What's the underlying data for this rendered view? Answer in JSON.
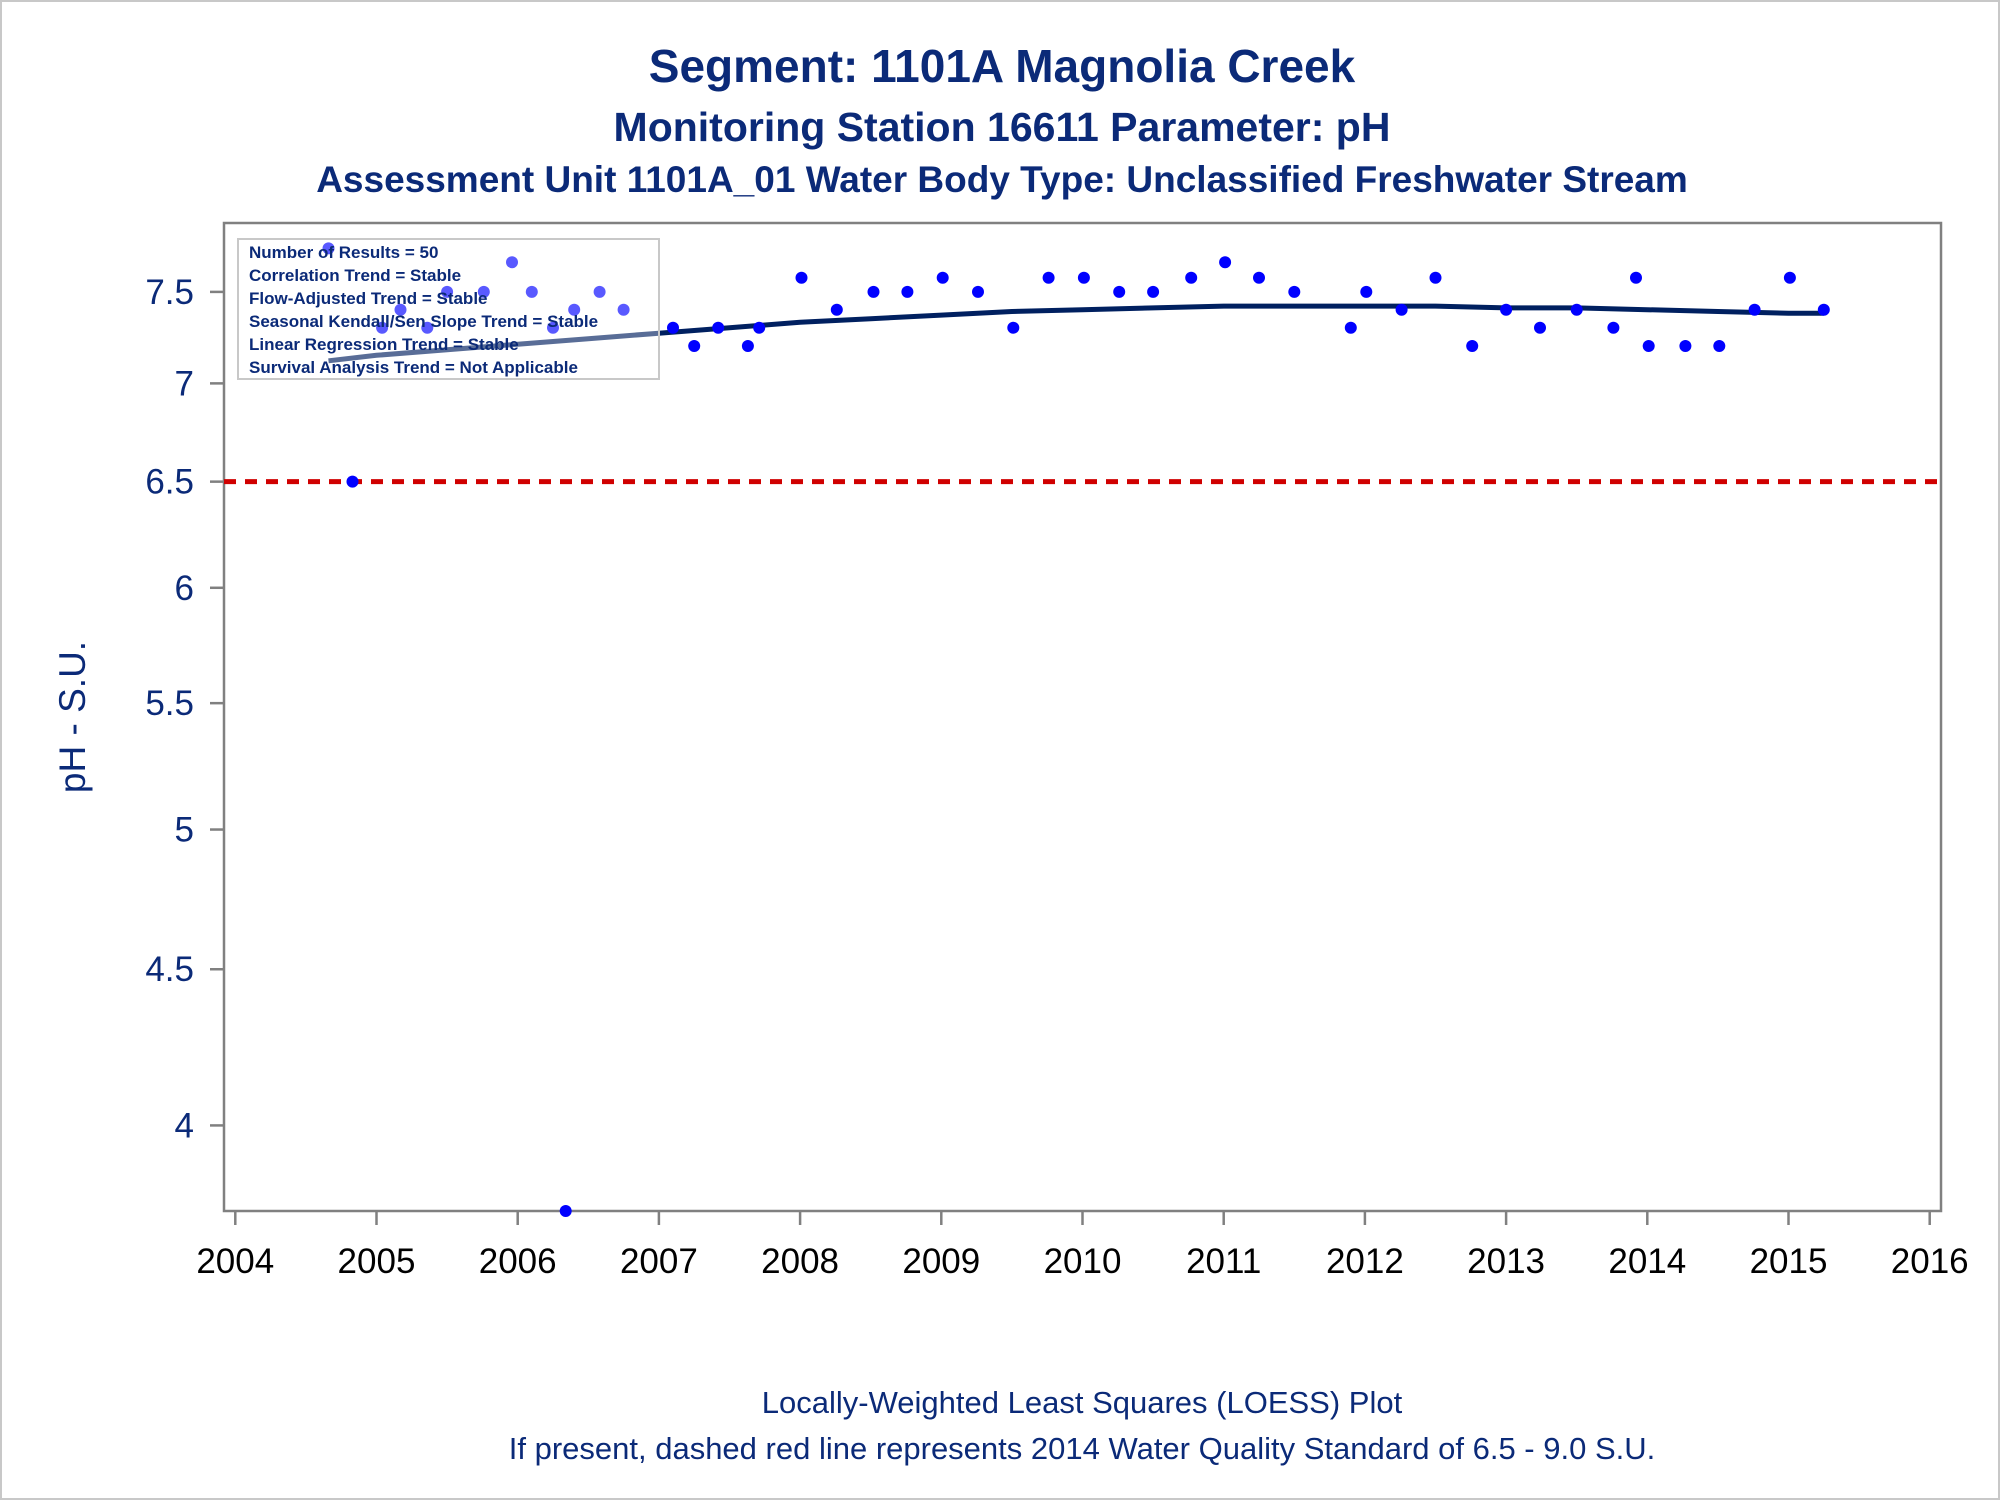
{
  "colors": {
    "title": "#0b2a78",
    "points": "#0000ff",
    "trend_line": "#002060",
    "standard_line": "#d00000",
    "axis": "#808080",
    "x_tick_text": "#000000"
  },
  "chart_data": {
    "type": "scatter",
    "title": "Segment: 1101A  Magnolia Creek",
    "subtitle": "Monitoring Station 16611 Parameter: pH",
    "subtitle2": "Assessment Unit 1101A_01   Water Body Type: Unclassified Freshwater Stream",
    "ylabel": "pH - S.U.",
    "xlabel": "",
    "y_scale": "log",
    "ylim": [
      3.75,
      7.9
    ],
    "xlim": [
      2003.92,
      2016.08
    ],
    "yticks": [
      "4",
      "4.5",
      "5",
      "5.5",
      "6",
      "6.5",
      "7",
      "7.5"
    ],
    "xticks": [
      "2004",
      "2005",
      "2006",
      "2007",
      "2008",
      "2009",
      "2010",
      "2011",
      "2012",
      "2013",
      "2014",
      "2015",
      "2016"
    ],
    "legend_placement": "top-left",
    "grid": false,
    "stats_box": [
      "Number of Results = 50",
      "Correlation Trend = Stable",
      "Flow-Adjusted Trend = Stable",
      "Seasonal Kendall/Sen Slope Trend = Stable",
      "Linear Regression Trend = Stable",
      "Survival Analysis Trend = Not Applicable"
    ],
    "footnotes": [
      "Locally-Weighted Least Squares (LOESS) Plot",
      "If present, dashed red line represents 2014 Water Quality Standard of 6.5 - 9.0 S.U."
    ],
    "standard_line": 6.5,
    "series": [
      {
        "type": "scatter",
        "x": [
          2004.66,
          2004.83,
          2005.04,
          2005.17,
          2005.36,
          2005.5,
          2005.76,
          2005.96,
          2006.1,
          2006.25,
          2006.4,
          2006.58,
          2006.75,
          2006.34,
          2007.1,
          2007.25,
          2007.42,
          2007.63,
          2007.71,
          2008.01,
          2008.26,
          2008.52,
          2008.76,
          2009.01,
          2009.26,
          2009.51,
          2009.76,
          2010.01,
          2010.26,
          2010.5,
          2010.77,
          2011.01,
          2011.25,
          2011.5,
          2011.9,
          2012.01,
          2012.26,
          2012.5,
          2012.76,
          2013.0,
          2013.24,
          2013.5,
          2013.76,
          2013.92,
          2014.01,
          2014.27,
          2014.51,
          2014.76,
          2015.01,
          2015.25
        ],
        "y": [
          7.75,
          6.5,
          7.3,
          7.4,
          7.3,
          7.5,
          7.5,
          7.67,
          7.5,
          7.3,
          7.4,
          7.5,
          7.4,
          3.75,
          7.3,
          7.2,
          7.3,
          7.2,
          7.3,
          7.58,
          7.4,
          7.5,
          7.5,
          7.58,
          7.5,
          7.3,
          7.58,
          7.58,
          7.5,
          7.5,
          7.58,
          7.67,
          7.58,
          7.5,
          7.3,
          7.5,
          7.4,
          7.58,
          7.2,
          7.4,
          7.3,
          7.4,
          7.3,
          7.58,
          7.2,
          7.2,
          7.2,
          7.4,
          7.58,
          7.4
        ]
      },
      {
        "type": "line",
        "x": [
          2004.66,
          2005.0,
          2005.5,
          2006.0,
          2006.5,
          2007.0,
          2007.5,
          2008.0,
          2008.5,
          2009.0,
          2009.5,
          2010.0,
          2010.5,
          2011.0,
          2011.5,
          2012.0,
          2012.5,
          2013.0,
          2013.5,
          2014.0,
          2014.5,
          2015.0,
          2015.25
        ],
        "y": [
          7.12,
          7.15,
          7.18,
          7.21,
          7.24,
          7.27,
          7.3,
          7.33,
          7.35,
          7.37,
          7.39,
          7.4,
          7.41,
          7.42,
          7.42,
          7.42,
          7.42,
          7.41,
          7.41,
          7.4,
          7.39,
          7.38,
          7.38
        ]
      }
    ]
  }
}
